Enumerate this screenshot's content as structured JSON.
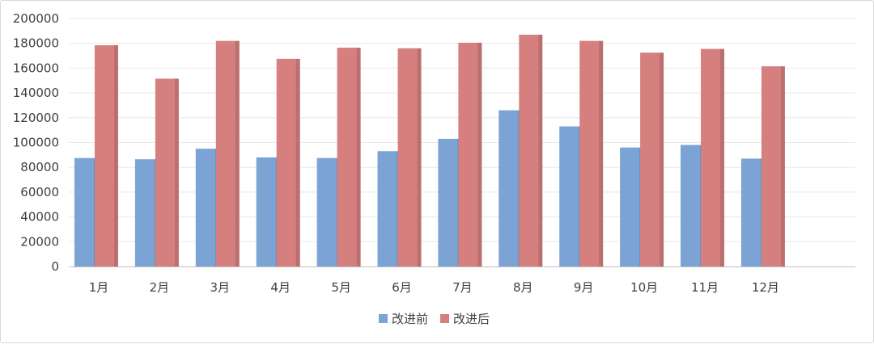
{
  "chart_data": {
    "type": "bar",
    "categories": [
      "1月",
      "2月",
      "3月",
      "4月",
      "5月",
      "6月",
      "7月",
      "8月",
      "9月",
      "10月",
      "11月",
      "12月"
    ],
    "series": [
      {
        "name": "改进前",
        "color": "#7ba3d4",
        "values": [
          87500,
          86500,
          95000,
          88000,
          87500,
          93000,
          103000,
          126000,
          113000,
          96000,
          98000,
          87000
        ]
      },
      {
        "name": "改进后",
        "color": "#d67f7f",
        "values": [
          178500,
          151500,
          182000,
          167500,
          176500,
          176000,
          180500,
          187000,
          182000,
          172500,
          175500,
          161500
        ]
      }
    ],
    "yticks": [
      "0",
      "20000",
      "40000",
      "60000",
      "80000",
      "100000",
      "120000",
      "140000",
      "160000",
      "180000",
      "200000"
    ],
    "ylim": [
      0,
      200000
    ],
    "grid": true,
    "legend": "bottom-center"
  }
}
